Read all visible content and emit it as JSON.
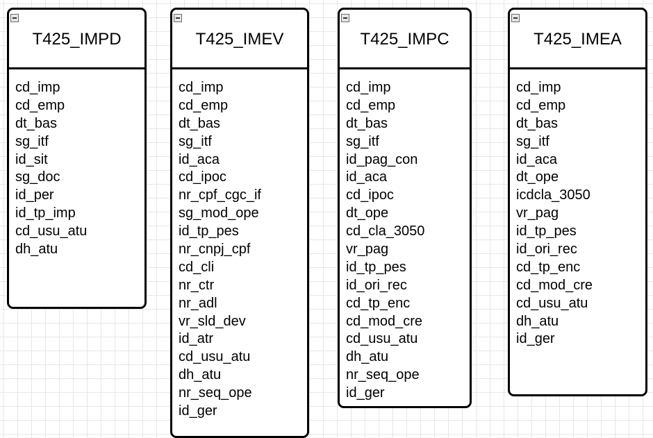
{
  "tables": [
    {
      "name": "T425_IMPD",
      "fields": [
        "cd_imp",
        "cd_emp",
        "dt_bas",
        "sg_itf",
        "id_sit",
        "sg_doc",
        "id_per",
        "id_tp_imp",
        "cd_usu_atu",
        "dh_atu"
      ]
    },
    {
      "name": "T425_IMEV",
      "fields": [
        "cd_imp",
        "cd_emp",
        "dt_bas",
        "sg_itf",
        "id_aca",
        "cd_ipoc",
        "nr_cpf_cgc_if",
        "sg_mod_ope",
        "id_tp_pes",
        "nr_cnpj_cpf",
        "cd_cli",
        "nr_ctr",
        "nr_adl",
        "vr_sld_dev",
        "id_atr",
        "cd_usu_atu",
        "dh_atu",
        "nr_seq_ope",
        "id_ger"
      ]
    },
    {
      "name": "T425_IMPC",
      "fields": [
        "cd_imp",
        "cd_emp",
        "dt_bas",
        "sg_itf",
        "id_pag_con",
        "id_aca",
        "cd_ipoc",
        "dt_ope",
        "cd_cla_3050",
        "vr_pag",
        "id_tp_pes",
        "id_ori_rec",
        "cd_tp_enc",
        "cd_mod_cre",
        "cd_usu_atu",
        "dh_atu",
        "nr_seq_ope",
        "id_ger"
      ]
    },
    {
      "name": "T425_IMEA",
      "fields": [
        "cd_imp",
        "cd_emp",
        "dt_bas",
        "sg_itf",
        "id_aca",
        "dt_ope",
        "icdcla_3050",
        "vr_pag",
        "id_tp_pes",
        "id_ori_rec",
        "cd_tp_enc",
        "cd_mod_cre",
        "cd_usu_atu",
        "dh_atu",
        "id_ger"
      ]
    }
  ]
}
